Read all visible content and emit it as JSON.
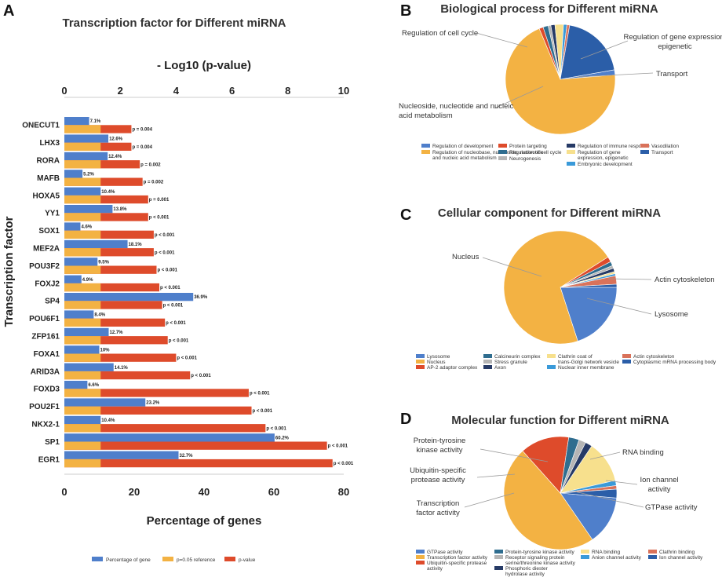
{
  "panel_letters": {
    "a": "A",
    "b": "B",
    "c": "C",
    "d": "D"
  },
  "colors": {
    "percent": "#4f7fcb",
    "reference": "#f3b243",
    "pvalue": "#de4b2b",
    "gridline": "#cccccc"
  },
  "chart_data": [
    {
      "type": "bar",
      "id": "A",
      "title": "Transcription factor for Different miRNA",
      "ylabel": "Transcription factor",
      "xlabel_bottom": "Percentage of genes",
      "xlabel_top": "- Log10 (p-value)",
      "xlim_bottom": [
        0,
        80
      ],
      "xlim_top": [
        0,
        10
      ],
      "xticks_bottom": [
        "0",
        "20",
        "40",
        "60",
        "80"
      ],
      "xticks_top": [
        "0",
        "2",
        "4",
        "6",
        "8",
        "10"
      ],
      "categories": [
        "ONECUT1",
        "LHX3",
        "RORA",
        "MAFB",
        "HOXA5",
        "YY1",
        "SOX1",
        "MEF2A",
        "POU3F2",
        "FOXJ2",
        "SP4",
        "POU6F1",
        "ZFP161",
        "FOXA1",
        "ARID3A",
        "FOXD3",
        "POU2F1",
        "NKX2-1",
        "SP1",
        "EGR1"
      ],
      "series": [
        {
          "name": "Percentage of gene",
          "axis": "bottom",
          "values": [
            7.1,
            12.6,
            12.4,
            5.2,
            10.4,
            13.8,
            4.6,
            18.1,
            9.5,
            4.9,
            36.9,
            8.4,
            12.7,
            10,
            14.1,
            6.6,
            23.2,
            10.4,
            60.2,
            32.7
          ],
          "labels": [
            "7.1%",
            "12.6%",
            "12.4%",
            "5.2%",
            "10.4%",
            "13.8%",
            "4.6%",
            "18.1%",
            "9.5%",
            "4.9%",
            "36.9%",
            "8.4%",
            "12.7%",
            "10%",
            "14.1%",
            "6.6%",
            "23.2%",
            "10.4%",
            "60.2%",
            "32.7%"
          ]
        },
        {
          "name": "p=0.05 reference",
          "axis": "top",
          "values": [
            1.3,
            1.3,
            1.3,
            1.3,
            1.3,
            1.3,
            1.3,
            1.3,
            1.3,
            1.3,
            1.3,
            1.3,
            1.3,
            1.3,
            1.3,
            1.3,
            1.3,
            1.3,
            1.3,
            1.3
          ]
        },
        {
          "name": "p-value",
          "axis": "top",
          "values": [
            2.4,
            2.4,
            2.7,
            2.8,
            3.0,
            3.0,
            3.2,
            3.2,
            3.3,
            3.4,
            3.5,
            3.6,
            3.7,
            4.0,
            4.5,
            6.6,
            6.7,
            7.2,
            9.4,
            9.6
          ],
          "labels": [
            "p = 0.004",
            "p = 0.004",
            "p = 0.002",
            "p = 0.002",
            "p = 0.001",
            "p < 0.001",
            "p < 0.001",
            "p < 0.001",
            "p < 0.001",
            "p < 0.001",
            "p < 0.001",
            "p < 0.001",
            "p < 0.001",
            "p < 0.001",
            "p < 0.001",
            "p < 0.001",
            "p < 0.001",
            "p < 0.001",
            "p < 0.001",
            "p < 0.001"
          ]
        }
      ],
      "legend": [
        "Percentage of gene",
        "p=0.05 reference",
        "p-value"
      ],
      "legend_position": "bottom"
    },
    {
      "type": "pie",
      "id": "B",
      "title": "Biological process for Different miRNA",
      "slices": [
        {
          "label": "Regulation of development",
          "value": 1.5,
          "color": "#4f7fcb"
        },
        {
          "label": "Regulation of nucleobase, nucleoside, nucleotide and nucleic acid metabolism",
          "value": 70,
          "color": "#f3b243"
        },
        {
          "label": "Protein targeting",
          "value": 1.2,
          "color": "#de4b2b"
        },
        {
          "label": "Regulation of cell cycle",
          "value": 1.5,
          "color": "#2f6d8f"
        },
        {
          "label": "Neurogenesis",
          "value": 0.8,
          "color": "#b5b5b5"
        },
        {
          "label": "Regulation of immune response",
          "value": 1.2,
          "color": "#263a66"
        },
        {
          "label": "Regulation of gene expression, epigenetic",
          "value": 2.5,
          "color": "#f7e08d"
        },
        {
          "label": "Embryonic development",
          "value": 1.0,
          "color": "#3a9ad9"
        },
        {
          "label": "Vasodilation",
          "value": 0.8,
          "color": "#d9725a"
        },
        {
          "label": "Transport",
          "value": 19.5,
          "color": "#2b5ea8"
        }
      ],
      "callouts": [
        "Regulation of cell cycle",
        "Regulation of gene expression, epigenetic",
        "Transport",
        "Nucleoside, nucleotide and nucleic acid metabolism"
      ]
    },
    {
      "type": "pie",
      "id": "C",
      "title": "Cellular component for Different miRNA",
      "slices": [
        {
          "label": "Lysosome",
          "value": 20,
          "color": "#4f7fcb"
        },
        {
          "label": "Nucleus",
          "value": 71,
          "color": "#f3b243"
        },
        {
          "label": "AP-2 adaptor complex",
          "value": 1.5,
          "color": "#de4b2b"
        },
        {
          "label": "Calcineurin complex",
          "value": 1.2,
          "color": "#2f6d8f"
        },
        {
          "label": "Stress granule",
          "value": 0.8,
          "color": "#b5b5b5"
        },
        {
          "label": "Axon",
          "value": 1.0,
          "color": "#263a66"
        },
        {
          "label": "Clathrin coat of trans-Golgi network vesicle",
          "value": 0.6,
          "color": "#f7e08d"
        },
        {
          "label": "Nuclear inner membrane",
          "value": 0.6,
          "color": "#3a9ad9"
        },
        {
          "label": "Actin cytoskeleton",
          "value": 2.4,
          "color": "#d9725a"
        },
        {
          "label": "Cytoplasmic mRNA processing body",
          "value": 0.9,
          "color": "#2b5ea8"
        }
      ],
      "callouts": [
        "Nucleus",
        "Actin cytoskeleton",
        "Lysosome"
      ]
    },
    {
      "type": "pie",
      "id": "D",
      "title": "Molecular function for Different miRNA",
      "slices": [
        {
          "label": "GTPase activity",
          "value": 14,
          "color": "#4f7fcb"
        },
        {
          "label": "Transcription factor activity",
          "value": 48,
          "color": "#f3b243"
        },
        {
          "label": "Ubiquitin-specific protease activity",
          "value": 14,
          "color": "#de4b2b"
        },
        {
          "label": "Protein-tyrosine kinase activity",
          "value": 3,
          "color": "#2f6d8f"
        },
        {
          "label": "Receptor signaling protein serine/threonine kinase activity",
          "value": 2,
          "color": "#b5b5b5"
        },
        {
          "label": "Phosphoric diester hydrolase activity",
          "value": 2,
          "color": "#263a66"
        },
        {
          "label": "RNA binding",
          "value": 12,
          "color": "#f7e08d"
        },
        {
          "label": "Anion channel activity",
          "value": 1.5,
          "color": "#3a9ad9"
        },
        {
          "label": "Clathrin binding",
          "value": 1,
          "color": "#d9725a"
        },
        {
          "label": "Ion channel activity",
          "value": 2.5,
          "color": "#2b5ea8"
        }
      ],
      "callouts": [
        "Protein-tyrosine kinase activity",
        "RNA binding",
        "Ubiquitin-specific protease activity",
        "Ion channel activity",
        "Transcription factor activity",
        "GTPase activity"
      ]
    }
  ]
}
